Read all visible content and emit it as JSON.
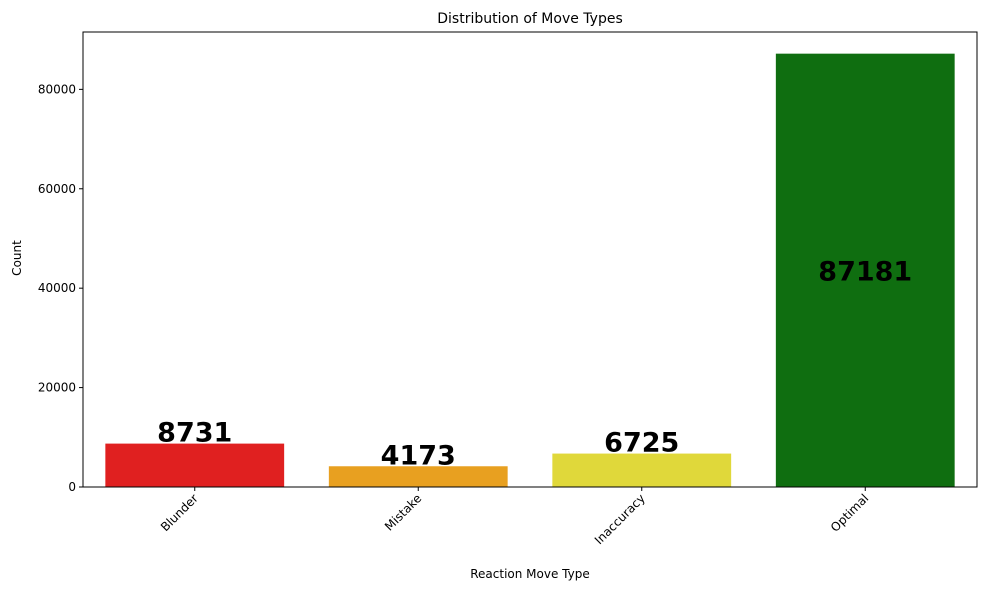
{
  "chart_data": {
    "type": "bar",
    "title": "Distribution of Move Types",
    "xlabel": "Reaction Move Type",
    "ylabel": "Count",
    "categories": [
      "Blunder",
      "Mistake",
      "Inaccuracy",
      "Optimal"
    ],
    "values": [
      8731,
      4173,
      6725,
      87181
    ],
    "value_labels": [
      "8731",
      "4173",
      "6725",
      "87181"
    ],
    "colors": [
      "#e02020",
      "#e8a020",
      "#e0d83a",
      "#0f6e10"
    ],
    "ylim": [
      0,
      91540
    ],
    "yticks": [
      0,
      20000,
      40000,
      60000,
      80000
    ],
    "ytick_labels": [
      "0",
      "20000",
      "40000",
      "60000",
      "80000"
    ],
    "xtick_rotation": 45,
    "grid": false,
    "legend": "none"
  }
}
